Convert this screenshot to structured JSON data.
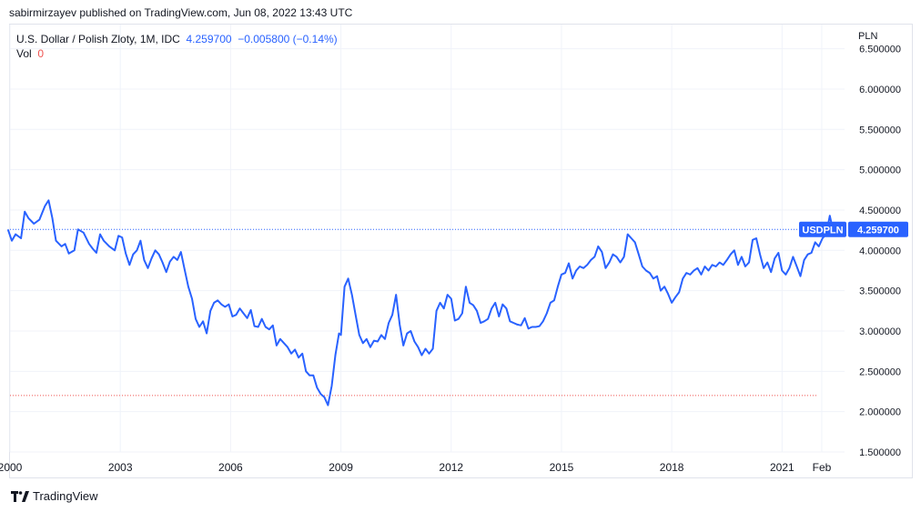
{
  "header": {
    "publisher_line": "sabirmirzayev published on TradingView.com, Jun 08, 2022 13:43 UTC"
  },
  "legend": {
    "symbol_desc": "U.S. Dollar / Polish Zloty, 1M, IDC",
    "last": "4.259700",
    "change": "−0.005800 (−0.14%)",
    "vol_label": "Vol",
    "vol_value": "0"
  },
  "price_axis": {
    "currency": "PLN",
    "ticks": [
      "6.500000",
      "6.000000",
      "5.500000",
      "5.000000",
      "4.500000",
      "4.000000",
      "3.500000",
      "3.000000",
      "2.500000",
      "2.000000",
      "1.500000"
    ]
  },
  "price_label": {
    "symbol": "USDPLN",
    "value": "4.259700",
    "color": "#2962ff"
  },
  "footer": {
    "brand": "TradingView"
  },
  "colors": {
    "line": "#2962ff",
    "grid": "#f0f3fa",
    "last_price_line": "#2962ff",
    "low_line": "#ef5350"
  },
  "chart_data": {
    "type": "line",
    "title": "U.S. Dollar / Polish Zloty, 1M, IDC",
    "xlabel": "",
    "ylabel": "PLN",
    "ylim": [
      1.5,
      6.8
    ],
    "xlim": [
      2000.0,
      2022.7
    ],
    "x_ticks": [
      {
        "label": "2000",
        "x": 2000.0
      },
      {
        "label": "2003",
        "x": 2003.0
      },
      {
        "label": "2006",
        "x": 2006.0
      },
      {
        "label": "2009",
        "x": 2009.0
      },
      {
        "label": "2012",
        "x": 2012.0
      },
      {
        "label": "2015",
        "x": 2015.0
      },
      {
        "label": "2018",
        "x": 2018.0
      },
      {
        "label": "2021",
        "x": 2021.0
      },
      {
        "label": "Feb",
        "x": 2022.08
      }
    ],
    "grid": true,
    "last_price": 4.2597,
    "low_marker": 2.2,
    "series": [
      {
        "values": [
          [
            1999.95,
            4.25
          ],
          [
            2000.05,
            4.12
          ],
          [
            2000.15,
            4.2
          ],
          [
            2000.3,
            4.15
          ],
          [
            2000.4,
            4.48
          ],
          [
            2000.5,
            4.4
          ],
          [
            2000.65,
            4.33
          ],
          [
            2000.8,
            4.38
          ],
          [
            2000.95,
            4.55
          ],
          [
            2001.05,
            4.62
          ],
          [
            2001.15,
            4.4
          ],
          [
            2001.25,
            4.12
          ],
          [
            2001.4,
            4.05
          ],
          [
            2001.5,
            4.08
          ],
          [
            2001.6,
            3.96
          ],
          [
            2001.75,
            4.0
          ],
          [
            2001.85,
            4.26
          ],
          [
            2002.0,
            4.22
          ],
          [
            2002.15,
            4.08
          ],
          [
            2002.25,
            4.02
          ],
          [
            2002.35,
            3.97
          ],
          [
            2002.45,
            4.2
          ],
          [
            2002.55,
            4.12
          ],
          [
            2002.7,
            4.05
          ],
          [
            2002.85,
            4.0
          ],
          [
            2002.95,
            4.18
          ],
          [
            2003.05,
            4.16
          ],
          [
            2003.15,
            3.96
          ],
          [
            2003.25,
            3.82
          ],
          [
            2003.35,
            3.95
          ],
          [
            2003.45,
            4.0
          ],
          [
            2003.55,
            4.12
          ],
          [
            2003.65,
            3.88
          ],
          [
            2003.75,
            3.78
          ],
          [
            2003.85,
            3.9
          ],
          [
            2003.95,
            4.0
          ],
          [
            2004.05,
            3.95
          ],
          [
            2004.15,
            3.85
          ],
          [
            2004.25,
            3.73
          ],
          [
            2004.35,
            3.86
          ],
          [
            2004.45,
            3.92
          ],
          [
            2004.55,
            3.88
          ],
          [
            2004.65,
            3.98
          ],
          [
            2004.75,
            3.76
          ],
          [
            2004.85,
            3.55
          ],
          [
            2004.95,
            3.4
          ],
          [
            2005.05,
            3.15
          ],
          [
            2005.15,
            3.05
          ],
          [
            2005.25,
            3.12
          ],
          [
            2005.35,
            2.97
          ],
          [
            2005.45,
            3.25
          ],
          [
            2005.55,
            3.35
          ],
          [
            2005.65,
            3.38
          ],
          [
            2005.75,
            3.33
          ],
          [
            2005.85,
            3.3
          ],
          [
            2005.95,
            3.33
          ],
          [
            2006.05,
            3.18
          ],
          [
            2006.15,
            3.2
          ],
          [
            2006.25,
            3.28
          ],
          [
            2006.35,
            3.22
          ],
          [
            2006.45,
            3.16
          ],
          [
            2006.55,
            3.26
          ],
          [
            2006.65,
            3.06
          ],
          [
            2006.75,
            3.05
          ],
          [
            2006.85,
            3.15
          ],
          [
            2006.95,
            3.05
          ],
          [
            2007.05,
            3.02
          ],
          [
            2007.15,
            3.07
          ],
          [
            2007.25,
            2.82
          ],
          [
            2007.35,
            2.9
          ],
          [
            2007.45,
            2.85
          ],
          [
            2007.55,
            2.8
          ],
          [
            2007.65,
            2.72
          ],
          [
            2007.75,
            2.77
          ],
          [
            2007.85,
            2.67
          ],
          [
            2007.95,
            2.72
          ],
          [
            2008.05,
            2.5
          ],
          [
            2008.15,
            2.45
          ],
          [
            2008.25,
            2.45
          ],
          [
            2008.35,
            2.3
          ],
          [
            2008.45,
            2.22
          ],
          [
            2008.55,
            2.18
          ],
          [
            2008.65,
            2.08
          ],
          [
            2008.75,
            2.32
          ],
          [
            2008.85,
            2.7
          ],
          [
            2008.95,
            2.97
          ],
          [
            2009.0,
            2.95
          ],
          [
            2009.1,
            3.55
          ],
          [
            2009.2,
            3.65
          ],
          [
            2009.3,
            3.45
          ],
          [
            2009.4,
            3.2
          ],
          [
            2009.5,
            2.95
          ],
          [
            2009.6,
            2.85
          ],
          [
            2009.7,
            2.9
          ],
          [
            2009.8,
            2.8
          ],
          [
            2009.9,
            2.88
          ],
          [
            2010.0,
            2.87
          ],
          [
            2010.1,
            2.95
          ],
          [
            2010.2,
            2.9
          ],
          [
            2010.3,
            3.1
          ],
          [
            2010.4,
            3.2
          ],
          [
            2010.5,
            3.45
          ],
          [
            2010.6,
            3.08
          ],
          [
            2010.7,
            2.82
          ],
          [
            2010.8,
            2.97
          ],
          [
            2010.9,
            3.0
          ],
          [
            2011.0,
            2.87
          ],
          [
            2011.1,
            2.8
          ],
          [
            2011.2,
            2.7
          ],
          [
            2011.3,
            2.78
          ],
          [
            2011.4,
            2.72
          ],
          [
            2011.5,
            2.78
          ],
          [
            2011.6,
            3.25
          ],
          [
            2011.7,
            3.35
          ],
          [
            2011.8,
            3.28
          ],
          [
            2011.9,
            3.45
          ],
          [
            2012.0,
            3.4
          ],
          [
            2012.1,
            3.13
          ],
          [
            2012.2,
            3.15
          ],
          [
            2012.3,
            3.22
          ],
          [
            2012.4,
            3.55
          ],
          [
            2012.5,
            3.35
          ],
          [
            2012.6,
            3.32
          ],
          [
            2012.7,
            3.25
          ],
          [
            2012.8,
            3.1
          ],
          [
            2012.9,
            3.12
          ],
          [
            2013.0,
            3.15
          ],
          [
            2013.1,
            3.28
          ],
          [
            2013.2,
            3.35
          ],
          [
            2013.3,
            3.18
          ],
          [
            2013.4,
            3.33
          ],
          [
            2013.5,
            3.28
          ],
          [
            2013.6,
            3.12
          ],
          [
            2013.7,
            3.1
          ],
          [
            2013.8,
            3.08
          ],
          [
            2013.9,
            3.07
          ],
          [
            2014.0,
            3.16
          ],
          [
            2014.1,
            3.03
          ],
          [
            2014.2,
            3.05
          ],
          [
            2014.3,
            3.05
          ],
          [
            2014.4,
            3.06
          ],
          [
            2014.5,
            3.12
          ],
          [
            2014.6,
            3.22
          ],
          [
            2014.7,
            3.35
          ],
          [
            2014.8,
            3.38
          ],
          [
            2014.9,
            3.55
          ],
          [
            2015.0,
            3.7
          ],
          [
            2015.1,
            3.72
          ],
          [
            2015.2,
            3.84
          ],
          [
            2015.3,
            3.65
          ],
          [
            2015.4,
            3.75
          ],
          [
            2015.5,
            3.8
          ],
          [
            2015.6,
            3.78
          ],
          [
            2015.7,
            3.82
          ],
          [
            2015.8,
            3.88
          ],
          [
            2015.9,
            3.92
          ],
          [
            2016.0,
            4.05
          ],
          [
            2016.1,
            3.98
          ],
          [
            2016.2,
            3.78
          ],
          [
            2016.3,
            3.85
          ],
          [
            2016.4,
            3.95
          ],
          [
            2016.5,
            3.92
          ],
          [
            2016.6,
            3.85
          ],
          [
            2016.7,
            3.92
          ],
          [
            2016.8,
            4.2
          ],
          [
            2016.9,
            4.15
          ],
          [
            2017.0,
            4.1
          ],
          [
            2017.1,
            3.95
          ],
          [
            2017.2,
            3.8
          ],
          [
            2017.3,
            3.75
          ],
          [
            2017.4,
            3.72
          ],
          [
            2017.5,
            3.65
          ],
          [
            2017.6,
            3.68
          ],
          [
            2017.7,
            3.5
          ],
          [
            2017.8,
            3.55
          ],
          [
            2017.9,
            3.46
          ],
          [
            2018.0,
            3.35
          ],
          [
            2018.1,
            3.42
          ],
          [
            2018.2,
            3.48
          ],
          [
            2018.3,
            3.65
          ],
          [
            2018.4,
            3.72
          ],
          [
            2018.5,
            3.7
          ],
          [
            2018.6,
            3.75
          ],
          [
            2018.7,
            3.78
          ],
          [
            2018.8,
            3.7
          ],
          [
            2018.9,
            3.8
          ],
          [
            2019.0,
            3.75
          ],
          [
            2019.1,
            3.82
          ],
          [
            2019.2,
            3.8
          ],
          [
            2019.3,
            3.85
          ],
          [
            2019.4,
            3.82
          ],
          [
            2019.5,
            3.88
          ],
          [
            2019.6,
            3.95
          ],
          [
            2019.7,
            4.0
          ],
          [
            2019.8,
            3.82
          ],
          [
            2019.9,
            3.92
          ],
          [
            2020.0,
            3.8
          ],
          [
            2020.1,
            3.85
          ],
          [
            2020.2,
            4.13
          ],
          [
            2020.3,
            4.15
          ],
          [
            2020.4,
            3.95
          ],
          [
            2020.5,
            3.78
          ],
          [
            2020.6,
            3.85
          ],
          [
            2020.7,
            3.73
          ],
          [
            2020.8,
            3.9
          ],
          [
            2020.9,
            3.97
          ],
          [
            2021.0,
            3.75
          ],
          [
            2021.1,
            3.7
          ],
          [
            2021.2,
            3.78
          ],
          [
            2021.3,
            3.92
          ],
          [
            2021.4,
            3.8
          ],
          [
            2021.5,
            3.68
          ],
          [
            2021.6,
            3.88
          ],
          [
            2021.7,
            3.95
          ],
          [
            2021.8,
            3.97
          ],
          [
            2021.9,
            4.1
          ],
          [
            2022.0,
            4.05
          ],
          [
            2022.1,
            4.15
          ],
          [
            2022.2,
            4.2
          ],
          [
            2022.3,
            4.43
          ],
          [
            2022.38,
            4.2597
          ]
        ]
      }
    ]
  }
}
